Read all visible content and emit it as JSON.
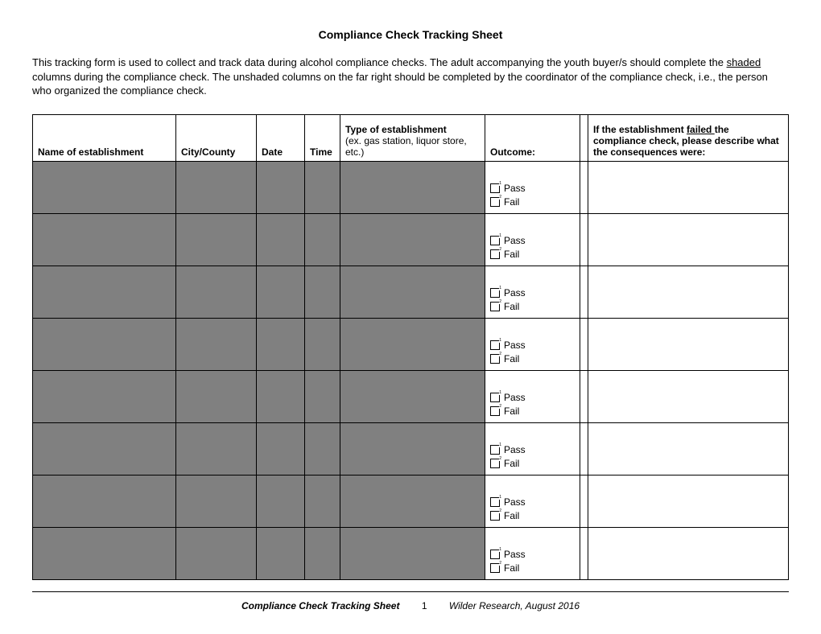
{
  "title": "Compliance Check Tracking Sheet",
  "intro_parts": {
    "p1": "This tracking form is used to collect and track data during alcohol compliance checks. The adult accompanying the youth buyer/s should complete the ",
    "shaded_word": "shaded",
    "p2": " columns during the compliance check. The unshaded columns on the far right should be completed by the coordinator of the compliance check, i.e., the person who organized the compliance check."
  },
  "columns": [
    {
      "label": "Name of establishment",
      "class": "c1"
    },
    {
      "label": "City/County",
      "class": "c2"
    },
    {
      "label": "Date",
      "class": "c3"
    },
    {
      "label": "Time",
      "class": "c4"
    },
    {
      "label_main": "Type of establishment",
      "label_sub": "(ex. gas station, liquor store, etc.)",
      "class": "c5"
    },
    {
      "label": "Outcome:",
      "class": "c6"
    },
    {
      "label": "",
      "class": "c7"
    },
    {
      "label_pre": "If the establishment ",
      "label_failed": "failed ",
      "label_post": "the compliance check, please describe what the consequences were:",
      "class": "c8"
    }
  ],
  "outcome_options": {
    "pass": "Pass",
    "fail": "Fail",
    "num1": "1",
    "num2": "2"
  },
  "row_count": 8,
  "footer": {
    "title": "Compliance Check Tracking Sheet",
    "page": "1",
    "org": "Wilder Research, August 2016"
  },
  "colors": {
    "shaded_bg": "#808080",
    "border": "#000000",
    "page_bg": "#ffffff"
  }
}
